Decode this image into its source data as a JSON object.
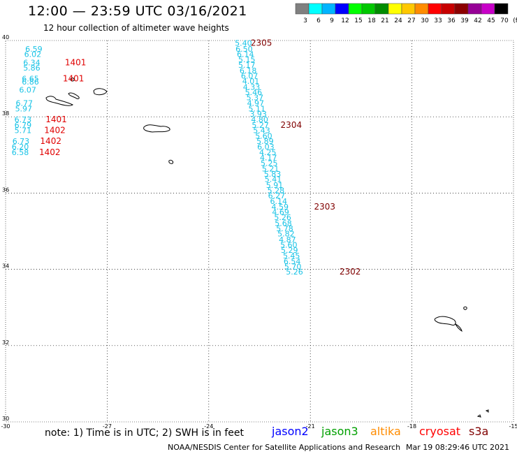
{
  "header": {
    "title": "12:00 — 23:59 UTC 03/16/2021",
    "subtitle": "12 hour collection of altimeter wave heights"
  },
  "legend_scale": {
    "labels": [
      "3",
      "6",
      "9",
      "12",
      "15",
      "18",
      "21",
      "24",
      "27",
      "30",
      "33",
      "36",
      "39",
      "42",
      "45",
      "70",
      "(ft)"
    ],
    "colors": [
      "#808080",
      "#00ffff",
      "#00b4ff",
      "#0000ff",
      "#00ff00",
      "#00c800",
      "#008c00",
      "#ffff00",
      "#ffc800",
      "#ff8c00",
      "#ff0000",
      "#c80000",
      "#8c0000",
      "#960096",
      "#c800c8",
      "#000000"
    ]
  },
  "map": {
    "lon_range": [
      -30,
      -15
    ],
    "lat_range": [
      30,
      40
    ],
    "x_ticks": [
      "-30",
      "-27",
      "-24",
      "-21",
      "-18",
      "-15"
    ],
    "y_ticks": [
      "40",
      "38",
      "36",
      "34",
      "32",
      "30"
    ]
  },
  "tracks": [
    {
      "label": "2305",
      "color": "#800000",
      "label_lat": 39.86,
      "label_lon": -22.76,
      "points": [
        {
          "lat": 39.86,
          "lon": -23.23,
          "v": "5.40"
        },
        {
          "lat": 39.71,
          "lon": -23.21,
          "v": "6.50"
        },
        {
          "lat": 39.57,
          "lon": -23.17,
          "v": "6.14"
        },
        {
          "lat": 39.43,
          "lon": -23.13,
          "v": "5.15"
        },
        {
          "lat": 39.29,
          "lon": -23.13,
          "v": "5.17"
        },
        {
          "lat": 39.14,
          "lon": -23.09,
          "v": "6.18"
        },
        {
          "lat": 39.0,
          "lon": -23.05,
          "v": "6.07"
        },
        {
          "lat": 38.86,
          "lon": -23.01,
          "v": "4.01"
        },
        {
          "lat": 38.71,
          "lon": -22.99,
          "v": "4.33"
        },
        {
          "lat": 38.57,
          "lon": -22.93,
          "v": "5.46"
        },
        {
          "lat": 38.43,
          "lon": -22.89,
          "v": "5.37"
        },
        {
          "lat": 38.29,
          "lon": -22.87,
          "v": "4.97"
        },
        {
          "lat": 38.14,
          "lon": -22.83,
          "v": "5.11"
        },
        {
          "lat": 38.0,
          "lon": -22.79,
          "v": "3.93"
        },
        {
          "lat": 37.86,
          "lon": -22.75,
          "v": "4.80"
        },
        {
          "lat": 37.71,
          "lon": -22.73,
          "v": "5.27"
        },
        {
          "lat": 37.57,
          "lon": -22.69,
          "v": "5.43"
        }
      ]
    },
    {
      "label": "2304",
      "color": "#800000",
      "label_lat": 37.71,
      "label_lon": -21.88,
      "points": [
        {
          "lat": 37.43,
          "lon": -22.63,
          "v": "5.60"
        },
        {
          "lat": 37.29,
          "lon": -22.59,
          "v": "5.89"
        },
        {
          "lat": 37.14,
          "lon": -22.57,
          "v": "6.03"
        },
        {
          "lat": 37.0,
          "lon": -22.51,
          "v": "4.25"
        },
        {
          "lat": 36.86,
          "lon": -22.49,
          "v": "4.17"
        },
        {
          "lat": 36.71,
          "lon": -22.47,
          "v": "5.25"
        },
        {
          "lat": 36.57,
          "lon": -22.43,
          "v": "5.21"
        },
        {
          "lat": 36.43,
          "lon": -22.37,
          "v": "5.83"
        },
        {
          "lat": 36.29,
          "lon": -22.35,
          "v": "5.41"
        },
        {
          "lat": 36.14,
          "lon": -22.31,
          "v": "5.91"
        },
        {
          "lat": 36.0,
          "lon": -22.27,
          "v": "5.28"
        },
        {
          "lat": 35.86,
          "lon": -22.25,
          "v": "6.27"
        },
        {
          "lat": 35.71,
          "lon": -22.19,
          "v": "6.14"
        },
        {
          "lat": 35.57,
          "lon": -22.15,
          "v": "4.59"
        },
        {
          "lat": 35.43,
          "lon": -22.13,
          "v": "4.69"
        },
        {
          "lat": 35.29,
          "lon": -22.07,
          "v": "5.26"
        },
        {
          "lat": 35.14,
          "lon": -22.05,
          "v": "5.68"
        },
        {
          "lat": 35.0,
          "lon": -22.01,
          "v": "5.78"
        },
        {
          "lat": 34.86,
          "lon": -21.97,
          "v": "5.82"
        },
        {
          "lat": 34.71,
          "lon": -21.93,
          "v": "4.87"
        }
      ]
    },
    {
      "label": "2303",
      "color": "#800000",
      "label_lat": 35.57,
      "label_lon": -20.89,
      "points": [
        {
          "lat": 34.57,
          "lon": -21.89,
          "v": "5.60"
        },
        {
          "lat": 34.43,
          "lon": -21.87,
          "v": "5.29"
        },
        {
          "lat": 34.29,
          "lon": -21.81,
          "v": "5.45"
        },
        {
          "lat": 34.14,
          "lon": -21.79,
          "v": "6.54"
        },
        {
          "lat": 34.0,
          "lon": -21.77,
          "v": "5.70"
        },
        {
          "lat": 33.86,
          "lon": -21.72,
          "v": "5.26"
        }
      ]
    },
    {
      "label": "2302",
      "color": "#800000",
      "label_lat": 33.86,
      "label_lon": -20.14,
      "points": []
    }
  ],
  "left_group": [
    {
      "lat": 39.71,
      "lon": -29.42,
      "v": "6.59"
    },
    {
      "lat": 39.57,
      "lon": -29.45,
      "v": "6.02"
    },
    {
      "lat": 39.35,
      "lon": -29.48,
      "v": "6.34"
    },
    {
      "lat": 39.21,
      "lon": -29.48,
      "v": "5.86"
    },
    {
      "lat": 38.93,
      "lon": -29.52,
      "v": "6.65"
    },
    {
      "lat": 38.85,
      "lon": -29.52,
      "v": "6.86"
    },
    {
      "lat": 38.64,
      "lon": -29.6,
      "v": "6.07"
    },
    {
      "lat": 38.29,
      "lon": -29.7,
      "v": "6.77"
    },
    {
      "lat": 38.14,
      "lon": -29.72,
      "v": "5.97"
    },
    {
      "lat": 37.86,
      "lon": -29.74,
      "v": "6.73"
    },
    {
      "lat": 37.71,
      "lon": -29.74,
      "v": "6.79"
    },
    {
      "lat": 37.57,
      "lon": -29.74,
      "v": "5.71"
    },
    {
      "lat": 37.29,
      "lon": -29.8,
      "v": "6.73"
    },
    {
      "lat": 37.14,
      "lon": -29.82,
      "v": "6.20"
    },
    {
      "lat": 37.0,
      "lon": -29.82,
      "v": "6.58"
    }
  ],
  "left_labels": [
    {
      "lat": 39.35,
      "lon": -28.25,
      "v": "1401"
    },
    {
      "lat": 38.93,
      "lon": -28.31,
      "v": "1401"
    },
    {
      "lat": 37.86,
      "lon": -28.82,
      "v": "1401"
    },
    {
      "lat": 37.57,
      "lon": -28.86,
      "v": "1402"
    },
    {
      "lat": 37.29,
      "lon": -28.98,
      "v": "1402"
    },
    {
      "lat": 37.0,
      "lon": -29.01,
      "v": "1402"
    }
  ],
  "footer": {
    "note": "note: 1) Time is in UTC; 2) SWH is in feet",
    "satellites": [
      {
        "name": "jason2",
        "color": "#0000ff"
      },
      {
        "name": "jason3",
        "color": "#00a000"
      },
      {
        "name": "altika",
        "color": "#ff8c00"
      },
      {
        "name": "cryosat",
        "color": "#ff0000"
      },
      {
        "name": "s3a",
        "color": "#800000"
      }
    ],
    "credit": "NOAA/NESDIS Center for Satellite Applications and Research",
    "timestamp": "Mar 19 08:29:46 UTC 2021"
  }
}
